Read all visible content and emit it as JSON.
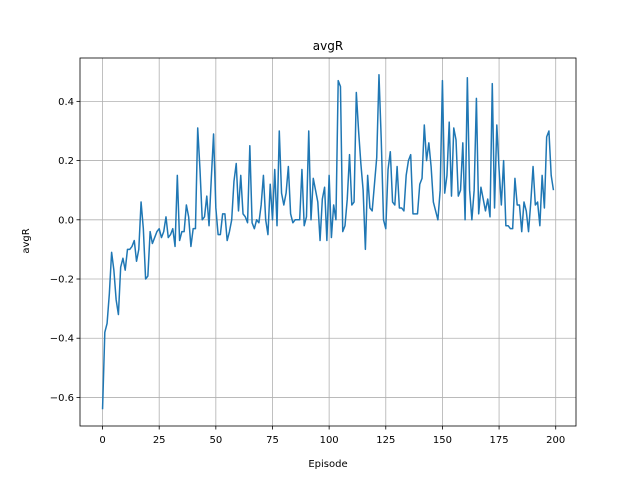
{
  "chart_data": {
    "type": "line",
    "title": "avgR",
    "x_label": "Episode",
    "y_label": "avgR",
    "color": "#1f77b4",
    "grid": true,
    "xlim": [
      -9.95,
      208.95
    ],
    "xticks": [
      0,
      25,
      50,
      75,
      100,
      125,
      150,
      175,
      200
    ],
    "ylim": [
      -0.6965,
      0.5465
    ],
    "yticks": [
      {
        "value": -0.6,
        "label": "−0.6"
      },
      {
        "value": -0.4,
        "label": "−0.4"
      },
      {
        "value": -0.2,
        "label": "−0.2"
      },
      {
        "value": 0,
        "label": "0.0"
      },
      0.2,
      0.4
    ],
    "x": [
      0,
      1,
      2,
      3,
      4,
      5,
      6,
      7,
      8,
      9,
      10,
      11,
      12,
      13,
      14,
      15,
      16,
      17,
      18,
      19,
      20,
      21,
      22,
      23,
      24,
      25,
      26,
      27,
      28,
      29,
      30,
      31,
      32,
      33,
      34,
      35,
      36,
      37,
      38,
      39,
      40,
      41,
      42,
      43,
      44,
      45,
      46,
      47,
      48,
      49,
      50,
      51,
      52,
      53,
      54,
      55,
      56,
      57,
      58,
      59,
      60,
      61,
      62,
      63,
      64,
      65,
      66,
      67,
      68,
      69,
      70,
      71,
      72,
      73,
      74,
      75,
      76,
      77,
      78,
      79,
      80,
      81,
      82,
      83,
      84,
      85,
      86,
      87,
      88,
      89,
      90,
      91,
      92,
      93,
      94,
      95,
      96,
      97,
      98,
      99,
      100,
      101,
      102,
      103,
      104,
      105,
      106,
      107,
      108,
      109,
      110,
      111,
      112,
      113,
      114,
      115,
      116,
      117,
      118,
      119,
      120,
      121,
      122,
      123,
      124,
      125,
      126,
      127,
      128,
      129,
      130,
      131,
      132,
      133,
      134,
      135,
      136,
      137,
      138,
      139,
      140,
      141,
      142,
      143,
      144,
      145,
      146,
      147,
      148,
      149,
      150,
      151,
      152,
      153,
      154,
      155,
      156,
      157,
      158,
      159,
      160,
      161,
      162,
      163,
      164,
      165,
      166,
      167,
      168,
      169,
      170,
      171,
      172,
      173,
      174,
      175,
      176,
      177,
      178,
      179,
      180,
      181,
      182,
      183,
      184,
      185,
      186,
      187,
      188,
      189,
      190,
      191,
      192,
      193,
      194,
      195,
      196,
      197,
      198,
      199
    ],
    "values": [
      -0.64,
      -0.38,
      -0.35,
      -0.25,
      -0.11,
      -0.17,
      -0.27,
      -0.32,
      -0.16,
      -0.13,
      -0.17,
      -0.1,
      -0.1,
      -0.09,
      -0.07,
      -0.14,
      -0.1,
      0.06,
      -0.03,
      -0.2,
      -0.19,
      -0.04,
      -0.08,
      -0.06,
      -0.04,
      -0.03,
      -0.06,
      -0.04,
      0.01,
      -0.06,
      -0.05,
      -0.03,
      -0.09,
      0.15,
      -0.07,
      -0.04,
      -0.04,
      0.05,
      0.01,
      -0.09,
      -0.03,
      -0.03,
      0.31,
      0.17,
      0.0,
      0.01,
      0.08,
      -0.02,
      0.14,
      0.29,
      0.04,
      -0.05,
      -0.05,
      0.02,
      0.02,
      -0.07,
      -0.04,
      0.0,
      0.13,
      0.19,
      0.03,
      0.15,
      0.02,
      0.01,
      -0.01,
      0.25,
      -0.01,
      -0.03,
      0.0,
      -0.01,
      0.05,
      0.15,
      0.0,
      -0.05,
      0.12,
      0.0,
      0.17,
      -0.02,
      0.3,
      0.09,
      0.05,
      0.09,
      0.18,
      0.02,
      -0.01,
      0.0,
      0.0,
      0.0,
      0.17,
      -0.02,
      0.01,
      0.3,
      0.0,
      0.14,
      0.1,
      0.06,
      -0.07,
      0.07,
      0.11,
      -0.07,
      0.15,
      -0.06,
      0.05,
      0.0,
      0.47,
      0.45,
      -0.04,
      -0.02,
      0.07,
      0.22,
      0.05,
      0.06,
      0.43,
      0.3,
      0.19,
      0.1,
      -0.1,
      0.15,
      0.04,
      0.03,
      0.12,
      0.21,
      0.49,
      0.27,
      0.0,
      -0.03,
      0.17,
      0.23,
      0.06,
      0.05,
      0.18,
      0.04,
      0.04,
      0.03,
      0.15,
      0.2,
      0.22,
      0.02,
      0.02,
      0.02,
      0.12,
      0.14,
      0.32,
      0.2,
      0.26,
      0.18,
      0.06,
      0.03,
      0.0,
      0.1,
      0.47,
      0.09,
      0.15,
      0.33,
      0.08,
      0.31,
      0.27,
      0.08,
      0.1,
      0.26,
      0.0,
      0.48,
      0.1,
      0.0,
      0.1,
      0.41,
      0.02,
      0.11,
      0.07,
      0.03,
      0.07,
      0.01,
      0.46,
      0.04,
      0.32,
      0.17,
      0.05,
      0.2,
      -0.02,
      -0.02,
      -0.03,
      -0.03,
      0.14,
      0.05,
      0.05,
      -0.04,
      0.06,
      0.03,
      -0.04,
      0.06,
      0.18,
      0.05,
      0.06,
      -0.02,
      0.15,
      0.04,
      0.28,
      0.3,
      0.15,
      0.1
    ]
  }
}
